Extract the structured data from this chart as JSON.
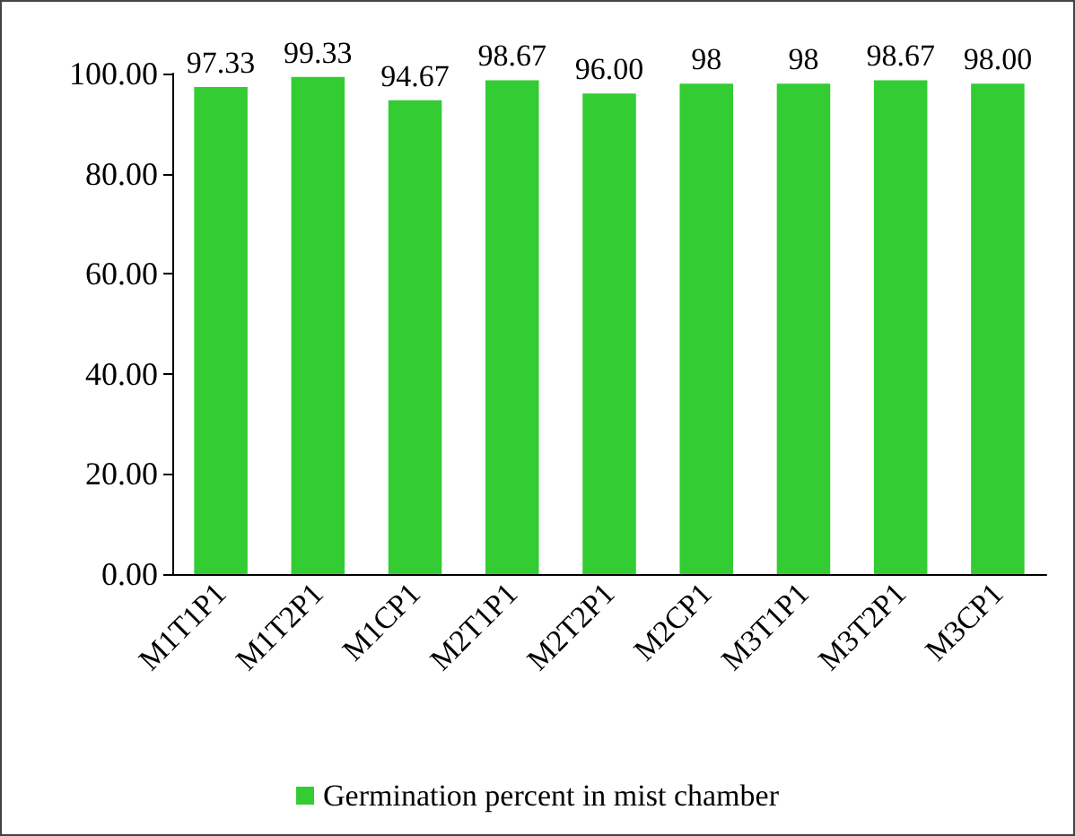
{
  "chart_data": {
    "type": "bar",
    "categories": [
      "M1T1P1",
      "M1T2P1",
      "M1CP1",
      "M2T1P1",
      "M2T2P1",
      "M2CP1",
      "M3T1P1",
      "M3T2P1",
      "M3CP1"
    ],
    "series": [
      {
        "name": "Germination percent in mist chamber",
        "color": "#33cc33",
        "values": [
          97.33,
          99.33,
          94.67,
          98.67,
          96,
          98,
          98,
          98.67,
          98
        ],
        "value_labels": [
          "97.33",
          "99.33",
          "94.67",
          "98.67",
          "96.00",
          "98",
          "98",
          "98.67",
          "98.00"
        ]
      }
    ],
    "ylim": [
      0,
      100
    ],
    "yticks": [
      {
        "value": 0,
        "label": "0.00"
      },
      {
        "value": 20,
        "label": "20.00"
      },
      {
        "value": 40,
        "label": "40.00"
      },
      {
        "value": 60,
        "label": "60.00"
      },
      {
        "value": 80,
        "label": "80.00"
      },
      {
        "value": 100,
        "label": "100.00"
      }
    ],
    "grid": false,
    "legend": "bottom"
  }
}
